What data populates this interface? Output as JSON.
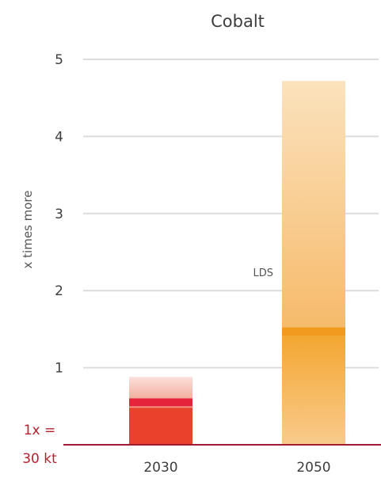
{
  "chart_data": {
    "type": "bar",
    "title": "Cobalt",
    "ylabel": "x times more",
    "xlabel": "",
    "ylim": [
      0,
      5
    ],
    "yticks": [
      "1",
      "2",
      "3",
      "4",
      "5"
    ],
    "grid": true,
    "categories": [
      "2030",
      "2050"
    ],
    "ranges": [
      {
        "category": "2030",
        "low": 0,
        "high": 0.88,
        "core_low": 0,
        "core_high": 0.48,
        "marker": 0.55,
        "color": "#e8412c",
        "light_color": "#f9d0c8"
      },
      {
        "category": "2050",
        "low": 0,
        "high": 4.72,
        "core_low": 0,
        "core_high": 1.47,
        "marker": 1.47,
        "color": "#f29a1e",
        "light_color": "#fbe0b4"
      }
    ],
    "reference_line": {
      "label": "LDS",
      "value": 2.24
    },
    "baseline_note": [
      "1x =",
      "30 kt"
    ],
    "colors": {
      "baseline": "#9e1b32",
      "grid": "#dcdcdc"
    }
  }
}
